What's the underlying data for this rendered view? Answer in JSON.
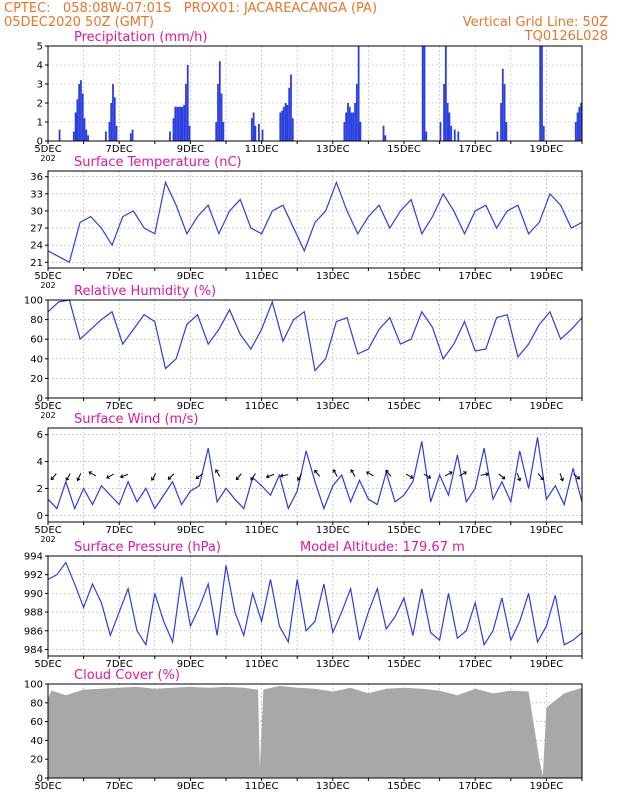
{
  "header": {
    "line1_left": "CPTEC:   058:08W-07:01S   PROX01: JACAREACANGA (PA)",
    "line2_left": "05DEC2020 50Z (GMT)",
    "line2_right": "Vertical Grid Line: 50Z",
    "line3_right": "TQ0126L028"
  },
  "colors": {
    "header": "#e8762a",
    "title": "#e0189c",
    "series": "#2b3fe0",
    "cloud": "#a8a8a8",
    "arrows": "#000000"
  },
  "chart_data": [
    {
      "id": "precip",
      "type": "bar",
      "title": "Precipitation (mm/h)",
      "ylim": [
        0,
        5
      ],
      "yticks": [
        "0",
        "1",
        "2",
        "3",
        "4",
        "5"
      ],
      "x_ticks": [
        "5DEC",
        "7DEC",
        "9DEC",
        "11DEC",
        "13DEC",
        "15DEC",
        "17DEC",
        "19DEC"
      ],
      "x_ticks_day": [
        0,
        2,
        4,
        6,
        8,
        10,
        12,
        14
      ],
      "x_start_label": "202",
      "bars": [
        [
          0.3,
          0.6
        ],
        [
          0.7,
          0.5
        ],
        [
          0.75,
          1.5
        ],
        [
          0.8,
          2.2
        ],
        [
          0.85,
          3.0
        ],
        [
          0.9,
          3.2
        ],
        [
          0.95,
          2.5
        ],
        [
          1.0,
          1.2
        ],
        [
          1.05,
          0.6
        ],
        [
          1.1,
          0.3
        ],
        [
          1.6,
          0.5
        ],
        [
          1.7,
          1.0
        ],
        [
          1.75,
          2.0
        ],
        [
          1.8,
          3.0
        ],
        [
          1.85,
          2.3
        ],
        [
          1.9,
          0.8
        ],
        [
          2.3,
          0.4
        ],
        [
          2.35,
          0.6
        ],
        [
          3.4,
          0.5
        ],
        [
          3.5,
          1.2
        ],
        [
          3.55,
          1.8
        ],
        [
          3.6,
          1.8
        ],
        [
          3.65,
          1.8
        ],
        [
          3.7,
          1.8
        ],
        [
          3.75,
          1.8
        ],
        [
          3.8,
          1.9
        ],
        [
          3.85,
          3.0
        ],
        [
          3.9,
          4.0
        ],
        [
          3.95,
          0.8
        ],
        [
          4.7,
          1.0
        ],
        [
          4.75,
          3.0
        ],
        [
          4.8,
          4.2
        ],
        [
          4.85,
          2.5
        ],
        [
          4.9,
          1.0
        ],
        [
          5.7,
          1.2
        ],
        [
          5.75,
          1.5
        ],
        [
          5.8,
          0.8
        ],
        [
          5.9,
          0.9
        ],
        [
          6.0,
          0.6
        ],
        [
          6.5,
          1.5
        ],
        [
          6.55,
          1.6
        ],
        [
          6.6,
          1.8
        ],
        [
          6.65,
          2.0
        ],
        [
          6.7,
          1.9
        ],
        [
          6.75,
          2.8
        ],
        [
          6.8,
          3.5
        ],
        [
          6.85,
          1.2
        ],
        [
          8.3,
          1.0
        ],
        [
          8.35,
          1.5
        ],
        [
          8.4,
          2.0
        ],
        [
          8.45,
          1.8
        ],
        [
          8.5,
          1.5
        ],
        [
          8.55,
          1.5
        ],
        [
          8.6,
          2.0
        ],
        [
          8.65,
          3.0
        ],
        [
          8.7,
          5.0
        ],
        [
          8.75,
          1.0
        ],
        [
          9.4,
          0.8
        ],
        [
          9.45,
          0.3
        ],
        [
          10.5,
          5.0
        ],
        [
          10.55,
          5.0
        ],
        [
          10.6,
          0.5
        ],
        [
          11.0,
          1.0
        ],
        [
          11.1,
          3.0
        ],
        [
          11.15,
          5.0
        ],
        [
          11.2,
          2.0
        ],
        [
          11.25,
          1.5
        ],
        [
          11.3,
          0.8
        ],
        [
          11.4,
          0.6
        ],
        [
          11.5,
          0.5
        ],
        [
          12.6,
          0.5
        ],
        [
          12.7,
          2.0
        ],
        [
          12.75,
          3.8
        ],
        [
          12.8,
          3.0
        ],
        [
          12.85,
          1.0
        ],
        [
          13.8,
          5.0
        ],
        [
          13.85,
          5.0
        ],
        [
          13.9,
          0.8
        ],
        [
          14.8,
          1.0
        ],
        [
          14.85,
          1.5
        ],
        [
          14.9,
          1.8
        ],
        [
          14.95,
          2.0
        ]
      ]
    },
    {
      "id": "temp",
      "type": "line",
      "title": "Surface Temperature (nC)",
      "ylim": [
        20,
        37
      ],
      "yticks": [
        "21",
        "24",
        "27",
        "30",
        "33",
        "36"
      ],
      "ytick_values": [
        21,
        24,
        27,
        30,
        33,
        36
      ],
      "x_ticks": [
        "5DEC",
        "7DEC",
        "9DEC",
        "11DEC",
        "13DEC",
        "15DEC",
        "17DEC",
        "19DEC"
      ],
      "x_ticks_day": [
        0,
        2,
        4,
        6,
        8,
        10,
        12,
        14
      ],
      "x_start_label": "202",
      "x": [
        0,
        0.3,
        0.6,
        0.9,
        1.2,
        1.5,
        1.8,
        2.1,
        2.4,
        2.7,
        3.0,
        3.3,
        3.6,
        3.9,
        4.2,
        4.5,
        4.8,
        5.1,
        5.4,
        5.7,
        6.0,
        6.3,
        6.6,
        6.9,
        7.2,
        7.5,
        7.8,
        8.1,
        8.4,
        8.7,
        9.0,
        9.3,
        9.6,
        9.9,
        10.2,
        10.5,
        10.8,
        11.1,
        11.4,
        11.7,
        12.0,
        12.3,
        12.6,
        12.9,
        13.2,
        13.5,
        13.8,
        14.1,
        14.4,
        14.7,
        15.0
      ],
      "values": [
        23,
        22,
        21,
        28,
        29,
        27,
        24,
        29,
        30,
        27,
        26,
        35,
        31,
        26,
        29,
        31,
        26,
        30,
        32,
        27,
        26,
        30,
        31,
        27,
        23,
        28,
        30,
        35,
        30,
        26,
        29,
        31,
        27,
        30,
        32,
        26,
        29,
        33,
        30,
        26,
        30,
        31,
        27,
        30,
        31,
        26,
        28,
        33,
        31,
        27,
        28
      ]
    },
    {
      "id": "rh",
      "type": "line",
      "title": "Relative Humidity (%)",
      "ylim": [
        0,
        100
      ],
      "yticks": [
        "0",
        "20",
        "40",
        "60",
        "80",
        "100"
      ],
      "ytick_values": [
        0,
        20,
        40,
        60,
        80,
        100
      ],
      "x_ticks": [
        "5DEC",
        "7DEC",
        "9DEC",
        "11DEC",
        "13DEC",
        "15DEC",
        "17DEC",
        "19DEC"
      ],
      "x_ticks_day": [
        0,
        2,
        4,
        6,
        8,
        10,
        12,
        14
      ],
      "x_start_label": "202",
      "x": [
        0,
        0.3,
        0.6,
        0.9,
        1.2,
        1.5,
        1.8,
        2.1,
        2.4,
        2.7,
        3.0,
        3.3,
        3.6,
        3.9,
        4.2,
        4.5,
        4.8,
        5.1,
        5.4,
        5.7,
        6.0,
        6.3,
        6.6,
        6.9,
        7.2,
        7.5,
        7.8,
        8.1,
        8.4,
        8.7,
        9.0,
        9.3,
        9.6,
        9.9,
        10.2,
        10.5,
        10.8,
        11.1,
        11.4,
        11.7,
        12.0,
        12.3,
        12.6,
        12.9,
        13.2,
        13.5,
        13.8,
        14.1,
        14.4,
        14.7,
        15.0
      ],
      "values": [
        88,
        98,
        100,
        60,
        70,
        80,
        88,
        55,
        70,
        85,
        78,
        30,
        40,
        75,
        85,
        55,
        70,
        90,
        65,
        50,
        70,
        98,
        58,
        80,
        88,
        28,
        40,
        78,
        82,
        45,
        50,
        70,
        82,
        55,
        60,
        88,
        72,
        40,
        55,
        78,
        48,
        50,
        82,
        85,
        42,
        55,
        75,
        88,
        60,
        70,
        82
      ]
    },
    {
      "id": "wind",
      "type": "line",
      "title": "Surface Wind (m/s)",
      "ylim": [
        -0.5,
        6.5
      ],
      "yticks": [
        "0",
        "2",
        "4",
        "6"
      ],
      "ytick_values": [
        0,
        2,
        4,
        6
      ],
      "x_ticks": [
        "5DEC",
        "7DEC",
        "9DEC",
        "11DEC",
        "13DEC",
        "15DEC",
        "17DEC",
        "19DEC"
      ],
      "x_ticks_day": [
        0,
        2,
        4,
        6,
        8,
        10,
        12,
        14
      ],
      "x_start_label": "202",
      "x": [
        0,
        0.25,
        0.5,
        0.75,
        1.0,
        1.25,
        1.5,
        1.75,
        2.0,
        2.25,
        2.5,
        2.75,
        3.0,
        3.25,
        3.5,
        3.75,
        4.0,
        4.25,
        4.5,
        4.75,
        5.0,
        5.25,
        5.5,
        5.75,
        6.0,
        6.25,
        6.5,
        6.75,
        7.0,
        7.25,
        7.5,
        7.75,
        8.0,
        8.25,
        8.5,
        8.75,
        9.0,
        9.25,
        9.5,
        9.75,
        10.0,
        10.25,
        10.5,
        10.75,
        11.0,
        11.25,
        11.5,
        11.75,
        12.0,
        12.25,
        12.5,
        12.75,
        13.0,
        13.25,
        13.5,
        13.75,
        14.0,
        14.25,
        14.5,
        14.75,
        15.0
      ],
      "values": [
        1.2,
        0.5,
        2.5,
        0.5,
        2.0,
        0.8,
        2.2,
        1.5,
        0.8,
        2.5,
        1.0,
        2.0,
        0.5,
        1.5,
        2.5,
        0.8,
        1.8,
        2.2,
        5.0,
        1.0,
        2.0,
        1.2,
        0.5,
        2.8,
        2.2,
        1.5,
        3.0,
        0.5,
        1.8,
        4.8,
        2.5,
        0.5,
        2.2,
        3.0,
        1.0,
        2.6,
        1.2,
        0.8,
        3.2,
        1.0,
        1.5,
        2.5,
        5.5,
        1.0,
        3.0,
        1.5,
        4.5,
        1.0,
        2.0,
        5.0,
        1.2,
        2.5,
        1.0,
        4.8,
        2.0,
        5.8,
        1.2,
        2.2,
        0.8,
        3.5,
        1.0
      ],
      "arrows": [
        [
          0.2,
          220
        ],
        [
          0.6,
          210
        ],
        [
          0.9,
          205
        ],
        [
          1.3,
          300
        ],
        [
          1.8,
          240
        ],
        [
          2.2,
          250
        ],
        [
          3.0,
          210
        ],
        [
          3.5,
          225
        ],
        [
          4.3,
          235
        ],
        [
          4.8,
          330
        ],
        [
          5.4,
          220
        ],
        [
          5.8,
          215
        ],
        [
          6.3,
          250
        ],
        [
          6.7,
          260
        ],
        [
          7.1,
          210
        ],
        [
          7.6,
          320
        ],
        [
          8.1,
          330
        ],
        [
          8.6,
          330
        ],
        [
          9.1,
          300
        ],
        [
          9.6,
          320
        ],
        [
          10.1,
          120
        ],
        [
          10.6,
          120
        ],
        [
          11.2,
          60
        ],
        [
          11.6,
          60
        ],
        [
          12.2,
          80
        ],
        [
          12.7,
          130
        ],
        [
          13.2,
          160
        ],
        [
          13.8,
          140
        ],
        [
          14.4,
          160
        ],
        [
          14.8,
          130
        ]
      ]
    },
    {
      "id": "pressure",
      "type": "line",
      "title": "Surface Pressure (hPa)",
      "annotation": "Model Altitude: 179.67 m",
      "ylim": [
        983.3,
        994
      ],
      "yticks": [
        "984",
        "986",
        "988",
        "990",
        "992",
        "994"
      ],
      "ytick_values": [
        984,
        986,
        988,
        990,
        992,
        994
      ],
      "x_ticks": [
        "5DEC",
        "7DEC",
        "9DEC",
        "11DEC",
        "13DEC",
        "15DEC",
        "17DEC",
        "19DEC"
      ],
      "x_ticks_day": [
        0,
        2,
        4,
        6,
        8,
        10,
        12,
        14
      ],
      "x_start_label": "",
      "x": [
        0,
        0.25,
        0.5,
        0.75,
        1.0,
        1.25,
        1.5,
        1.75,
        2.0,
        2.25,
        2.5,
        2.75,
        3.0,
        3.25,
        3.5,
        3.75,
        4.0,
        4.25,
        4.5,
        4.75,
        5.0,
        5.25,
        5.5,
        5.75,
        6.0,
        6.25,
        6.5,
        6.75,
        7.0,
        7.25,
        7.5,
        7.75,
        8.0,
        8.25,
        8.5,
        8.75,
        9.0,
        9.25,
        9.5,
        9.75,
        10.0,
        10.25,
        10.5,
        10.75,
        11.0,
        11.25,
        11.5,
        11.75,
        12.0,
        12.25,
        12.5,
        12.75,
        13.0,
        13.25,
        13.5,
        13.75,
        14.0,
        14.25,
        14.5,
        14.75,
        15.0
      ],
      "values": [
        991.5,
        992.0,
        993.3,
        991.0,
        988.5,
        991.0,
        989.0,
        985.5,
        988.0,
        990.5,
        986.0,
        984.5,
        990.0,
        987.0,
        984.8,
        991.8,
        986.5,
        988.5,
        991.0,
        985.5,
        993.0,
        988.0,
        985.5,
        990.0,
        987.0,
        991.5,
        986.5,
        984.8,
        991.5,
        986.0,
        987.0,
        991.0,
        985.8,
        988.0,
        990.5,
        985.0,
        988.0,
        990.5,
        986.2,
        987.5,
        989.5,
        985.5,
        990.5,
        985.8,
        985.0,
        990.0,
        985.2,
        986.0,
        989.0,
        984.5,
        986.0,
        989.5,
        985.0,
        987.0,
        990.0,
        984.8,
        986.5,
        989.8,
        984.5,
        985.0,
        985.8
      ]
    },
    {
      "id": "cloud",
      "type": "area",
      "title": "Cloud Cover (%)",
      "ylim": [
        0,
        100
      ],
      "yticks": [
        "0",
        "20",
        "40",
        "60",
        "80",
        "100"
      ],
      "ytick_values": [
        0,
        20,
        40,
        60,
        80,
        100
      ],
      "x_ticks": [
        "5DEC",
        "7DEC",
        "9DEC",
        "11DEC",
        "13DEC",
        "15DEC",
        "17DEC",
        "19DEC"
      ],
      "x_ticks_day": [
        0,
        2,
        4,
        6,
        8,
        10,
        12,
        14
      ],
      "x_start_label": "",
      "x": [
        0,
        0.1,
        0.5,
        1.0,
        1.5,
        2.0,
        2.5,
        3.0,
        3.5,
        4.0,
        4.5,
        5.0,
        5.5,
        5.9,
        5.95,
        6.05,
        6.5,
        7.0,
        7.5,
        8.0,
        8.5,
        9.0,
        9.5,
        10.0,
        10.5,
        11.0,
        11.5,
        12.0,
        12.5,
        13.0,
        13.5,
        13.8,
        13.9,
        14.0,
        14.5,
        15.0
      ],
      "values": [
        85,
        93,
        88,
        94,
        95,
        96,
        97,
        95,
        96,
        97,
        96,
        97,
        96,
        94,
        10,
        94,
        98,
        96,
        95,
        92,
        96,
        90,
        95,
        96,
        95,
        93,
        88,
        95,
        90,
        93,
        92,
        20,
        2,
        75,
        90,
        96
      ]
    }
  ]
}
